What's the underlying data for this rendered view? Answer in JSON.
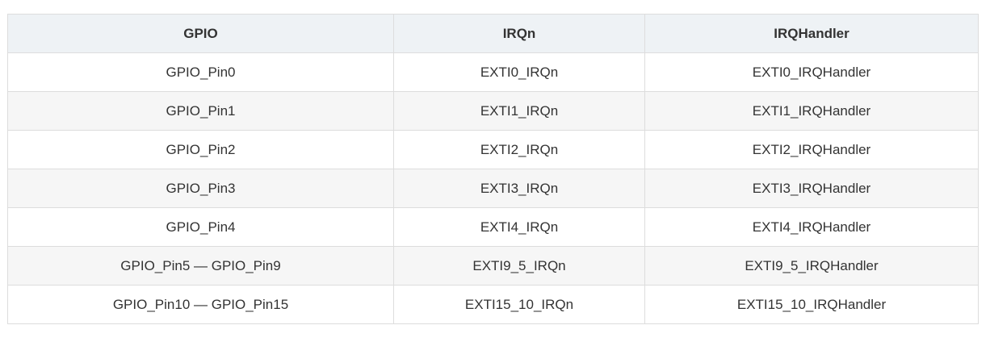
{
  "top_text": "",
  "table": {
    "headers": [
      "GPIO",
      "IRQn",
      "IRQHandler"
    ],
    "rows": [
      [
        "GPIO_Pin0",
        "EXTI0_IRQn",
        "EXTI0_IRQHandler"
      ],
      [
        "GPIO_Pin1",
        "EXTI1_IRQn",
        "EXTI1_IRQHandler"
      ],
      [
        "GPIO_Pin2",
        "EXTI2_IRQn",
        "EXTI2_IRQHandler"
      ],
      [
        "GPIO_Pin3",
        "EXTI3_IRQn",
        "EXTI3_IRQHandler"
      ],
      [
        "GPIO_Pin4",
        "EXTI4_IRQn",
        "EXTI4_IRQHandler"
      ],
      [
        "GPIO_Pin5 — GPIO_Pin9",
        "EXTI9_5_IRQn",
        "EXTI9_5_IRQHandler"
      ],
      [
        "GPIO_Pin10 — GPIO_Pin15",
        "EXTI15_10_IRQn",
        "EXTI15_10_IRQHandler"
      ]
    ]
  }
}
